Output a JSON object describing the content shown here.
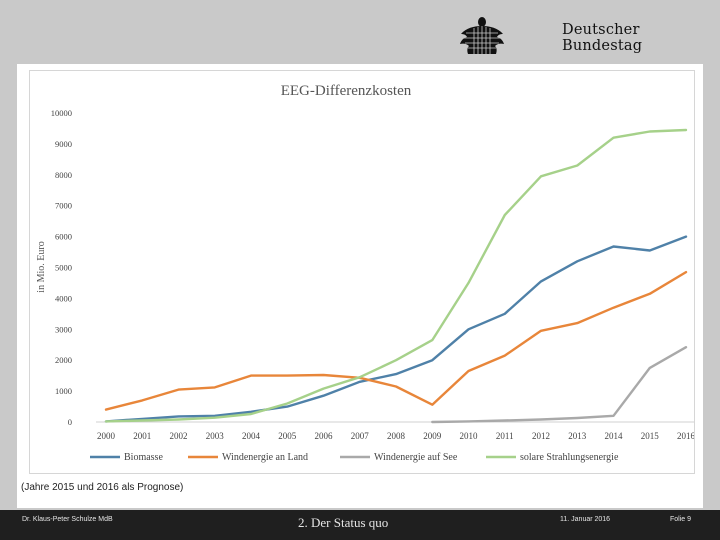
{
  "header": {
    "brand": "Deutscher Bundestag",
    "logo_icon": "bundestag-eagle-icon"
  },
  "chart_data": {
    "type": "line",
    "title": "EEG-Differenzkosten",
    "xlabel": "",
    "ylabel": "in Mio. Euro",
    "ylim": [
      0,
      10000
    ],
    "yticks": [
      "0",
      "1000",
      "2000",
      "3000",
      "4000",
      "5000",
      "6000",
      "7000",
      "8000",
      "9000",
      "10000"
    ],
    "x": [
      "2000",
      "2001",
      "2002",
      "2003",
      "2004",
      "2005",
      "2006",
      "2007",
      "2008",
      "2009",
      "2010",
      "2011",
      "2012",
      "2013",
      "2014",
      "2015",
      "2016"
    ],
    "grid": false,
    "legend": "bottom",
    "series": [
      {
        "name": "Biomasse",
        "color": "#4f81a8",
        "values": [
          20,
          100,
          180,
          200,
          330,
          500,
          850,
          1300,
          1550,
          2000,
          3000,
          3500,
          4550,
          5200,
          5680,
          5550,
          6000
        ]
      },
      {
        "name": "Windenergie an Land",
        "color": "#e8863a",
        "values": [
          400,
          700,
          1050,
          1120,
          1500,
          1500,
          1520,
          1430,
          1150,
          560,
          1650,
          2150,
          2950,
          3200,
          3700,
          4150,
          4850
        ]
      },
      {
        "name": "Windenergie auf See",
        "color": "#a9a9a9",
        "values": [
          null,
          null,
          null,
          null,
          null,
          null,
          null,
          null,
          null,
          0,
          20,
          50,
          80,
          130,
          200,
          1750,
          2420
        ]
      },
      {
        "name": "solare Strahlungsenergie",
        "color": "#a6d18a",
        "values": [
          20,
          50,
          80,
          140,
          260,
          600,
          1080,
          1450,
          2000,
          2650,
          4500,
          6700,
          7950,
          8300,
          9200,
          9400,
          9450
        ]
      }
    ]
  },
  "note": "(Jahre 2015 und 2016 als Prognose)",
  "footer": {
    "author": "Dr. Klaus-Peter Schulze MdB",
    "section": "2. Der Status quo",
    "date": "11. Januar 2016",
    "page": "Folie 9"
  }
}
